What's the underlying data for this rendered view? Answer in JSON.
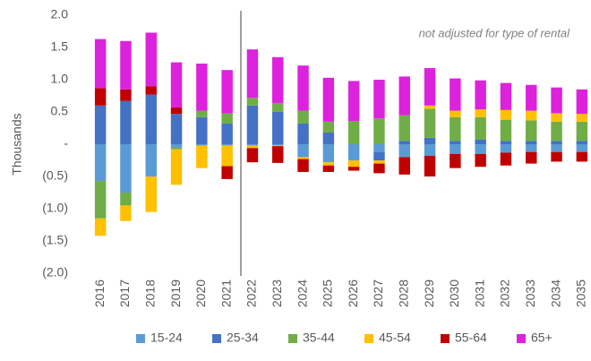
{
  "chart_data": {
    "type": "stacked_bar",
    "y_label": "Thousands",
    "annotation": "not adjusted for type of rental",
    "categories": [
      "2016",
      "2017",
      "2018",
      "2019",
      "2020",
      "2021",
      "2022",
      "2023",
      "2024",
      "2025",
      "2026",
      "2027",
      "2028",
      "2029",
      "2030",
      "2031",
      "2032",
      "2033",
      "2034",
      "2035"
    ],
    "series": [
      {
        "name": "15-24",
        "color": "#5b9bd5",
        "values": [
          -0.57,
          -0.75,
          -0.5,
          -0.05,
          -0.02,
          -0.02,
          -0.02,
          -0.02,
          -0.2,
          -0.28,
          -0.25,
          -0.12,
          -0.2,
          -0.18,
          -0.15,
          -0.15,
          -0.13,
          -0.12,
          -0.12,
          -0.12
        ]
      },
      {
        "name": "25-34",
        "color": "#4472c4",
        "values": [
          0.6,
          0.67,
          0.77,
          0.47,
          0.42,
          0.32,
          0.6,
          0.5,
          0.32,
          0.18,
          0,
          -0.13,
          0.05,
          0.1,
          0.05,
          0.07,
          0.05,
          0.05,
          0.05,
          0.05
        ]
      },
      {
        "name": "35-44",
        "color": "#70ad47",
        "values": [
          -0.58,
          -0.2,
          0,
          -0.03,
          0.1,
          0.16,
          0.12,
          0.14,
          0.2,
          0.17,
          0.36,
          0.4,
          0.4,
          0.45,
          0.37,
          0.35,
          0.33,
          0.32,
          0.3,
          0.3
        ]
      },
      {
        "name": "45-54",
        "color": "#ffc000",
        "values": [
          -0.27,
          -0.24,
          -0.55,
          -0.55,
          -0.35,
          -0.32,
          -0.04,
          -0.01,
          -0.03,
          -0.05,
          -0.1,
          -0.05,
          0,
          0.05,
          0.1,
          0.12,
          0.15,
          0.15,
          0.13,
          0.12
        ]
      },
      {
        "name": "55-64",
        "color": "#c00000",
        "values": [
          0.27,
          0.18,
          0.13,
          0.1,
          0,
          -0.2,
          -0.22,
          -0.26,
          -0.2,
          -0.1,
          -0.06,
          -0.15,
          -0.27,
          -0.32,
          -0.22,
          -0.2,
          -0.2,
          -0.18,
          -0.15,
          -0.15
        ]
      },
      {
        "name": "65+",
        "color": "#dd22dd",
        "values": [
          0.76,
          0.75,
          0.83,
          0.7,
          0.73,
          0.67,
          0.75,
          0.71,
          0.7,
          0.68,
          0.62,
          0.6,
          0.6,
          0.58,
          0.5,
          0.45,
          0.42,
          0.4,
          0.4,
          0.38
        ]
      }
    ],
    "ylim": [
      -2,
      2
    ],
    "yticks": [
      {
        "value": 2,
        "label": "2.0"
      },
      {
        "value": 1.5,
        "label": "1.5"
      },
      {
        "value": 1,
        "label": "1.0"
      },
      {
        "value": 0.5,
        "label": "0.5"
      },
      {
        "value": 0,
        "label": "-"
      },
      {
        "value": -0.5,
        "label": "(0.5)"
      },
      {
        "value": -1,
        "label": "(1.0)"
      },
      {
        "value": -1.5,
        "label": "(1.5)"
      },
      {
        "value": -2,
        "label": "(2.0)"
      }
    ],
    "grid": false,
    "legend": "bottom"
  }
}
